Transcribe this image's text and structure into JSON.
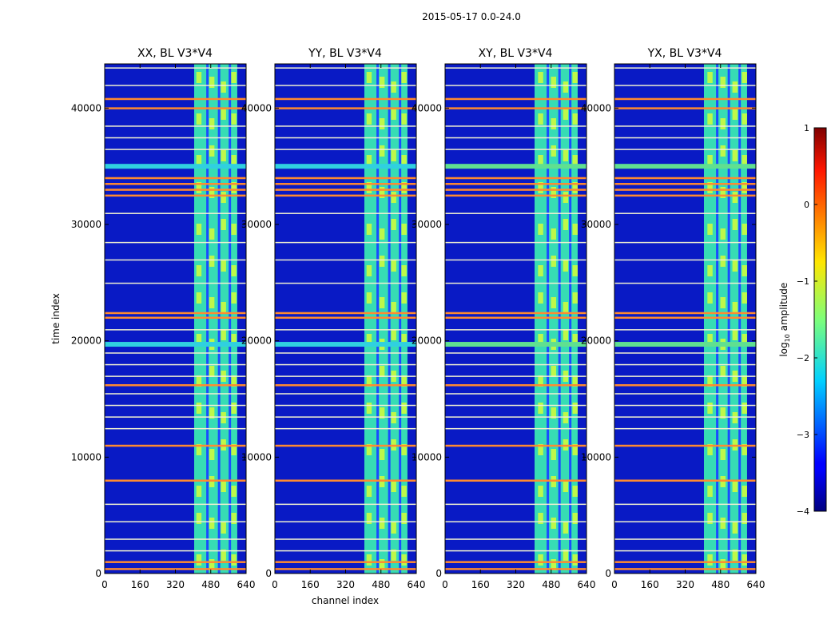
{
  "figure_title": "2015-05-17 0.0-24.0",
  "colors": {
    "background": "#00007f",
    "frame": "#000000"
  },
  "chart_data": {
    "type": "heatmap",
    "title": "2015-05-17 0.0-24.0",
    "xlabel": "channel index",
    "ylabel": "time index",
    "xlim": [
      0,
      640
    ],
    "ylim": [
      0,
      43800
    ],
    "xticks": [
      0,
      160,
      320,
      480,
      640
    ],
    "xtick_labels": [
      "0",
      "160",
      "320",
      "480",
      "640"
    ],
    "yticks": [
      0,
      10000,
      20000,
      30000,
      40000
    ],
    "ytick_labels": [
      "0",
      "10000",
      "20000",
      "30000",
      "40000"
    ],
    "panels": [
      {
        "title": "XX, BL V3*V4",
        "signal_band": [
          405,
          600
        ]
      },
      {
        "title": "YY, BL V3*V4",
        "signal_band": [
          405,
          600
        ]
      },
      {
        "title": "XY, BL V3*V4",
        "signal_band": [
          405,
          600
        ]
      },
      {
        "title": "YX, BL V3*V4",
        "signal_band": [
          405,
          600
        ]
      }
    ],
    "colorbar": {
      "label": "log10 amplitude",
      "label_main": "log",
      "label_sub": "10",
      "label_rest": " amplitude",
      "range": [
        -4,
        1
      ],
      "ticks": [
        1,
        0,
        -1,
        -2,
        -3,
        -4
      ],
      "tick_labels": [
        "1",
        "0",
        "−1",
        "−2",
        "−3",
        "−4"
      ],
      "colormap": "jet"
    },
    "flagged_rows_orange": [
      400,
      1000,
      8000,
      11000,
      16200,
      22000,
      22400,
      32500,
      33000,
      33500,
      34000,
      40000,
      40800
    ],
    "flagged_rows_white": [
      2000,
      3000,
      4500,
      6000,
      12500,
      13500,
      14500,
      15500,
      17000,
      18000,
      19000,
      21000,
      25000,
      27000,
      28500,
      31000,
      36500,
      37500,
      38500,
      42000,
      43500
    ],
    "flagged_rows_cyan": [
      19700,
      35000
    ]
  }
}
